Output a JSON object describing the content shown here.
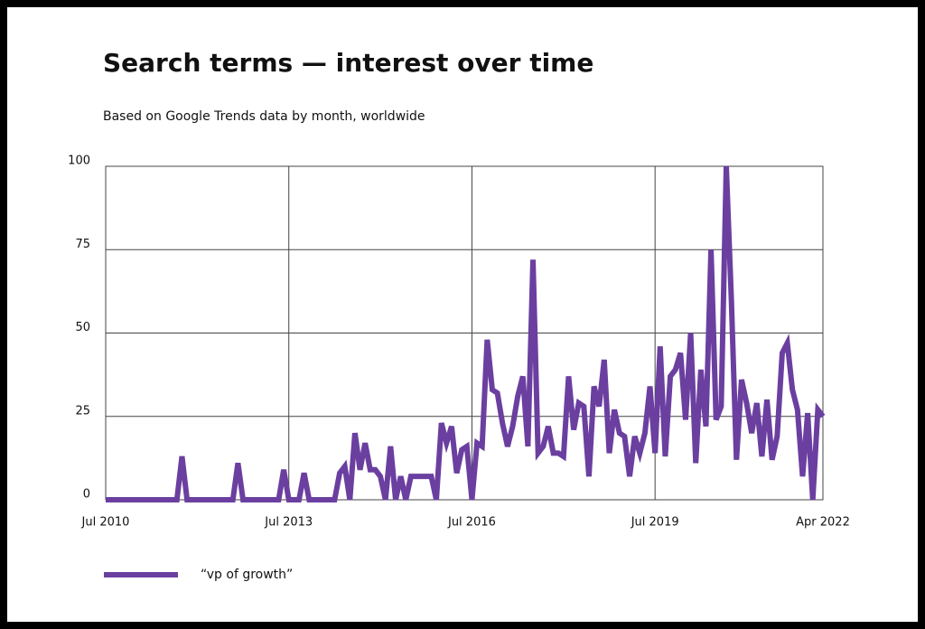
{
  "chart_data": {
    "type": "line",
    "title": "Search terms — interest over time",
    "subtitle": "Based on Google Trends data by month, worldwide",
    "x": [
      "2010-07",
      "2010-08",
      "2010-09",
      "2010-10",
      "2010-11",
      "2010-12",
      "2011-01",
      "2011-02",
      "2011-03",
      "2011-04",
      "2011-05",
      "2011-06",
      "2011-07",
      "2011-08",
      "2011-09",
      "2011-10",
      "2011-11",
      "2011-12",
      "2012-01",
      "2012-02",
      "2012-03",
      "2012-04",
      "2012-05",
      "2012-06",
      "2012-07",
      "2012-08",
      "2012-09",
      "2012-10",
      "2012-11",
      "2012-12",
      "2013-01",
      "2013-02",
      "2013-03",
      "2013-04",
      "2013-05",
      "2013-06",
      "2013-07",
      "2013-08",
      "2013-09",
      "2013-10",
      "2013-11",
      "2013-12",
      "2014-01",
      "2014-02",
      "2014-03",
      "2014-04",
      "2014-05",
      "2014-06",
      "2014-07",
      "2014-08",
      "2014-09",
      "2014-10",
      "2014-11",
      "2014-12",
      "2015-01",
      "2015-02",
      "2015-03",
      "2015-04",
      "2015-05",
      "2015-06",
      "2015-07",
      "2015-08",
      "2015-09",
      "2015-10",
      "2015-11",
      "2015-12",
      "2016-01",
      "2016-02",
      "2016-03",
      "2016-04",
      "2016-05",
      "2016-06",
      "2016-07",
      "2016-08",
      "2016-09",
      "2016-10",
      "2016-11",
      "2016-12",
      "2017-01",
      "2017-02",
      "2017-03",
      "2017-04",
      "2017-05",
      "2017-06",
      "2017-07",
      "2017-08",
      "2017-09",
      "2017-10",
      "2017-11",
      "2017-12",
      "2018-01",
      "2018-02",
      "2018-03",
      "2018-04",
      "2018-05",
      "2018-06",
      "2018-07",
      "2018-08",
      "2018-09",
      "2018-10",
      "2018-11",
      "2018-12",
      "2019-01",
      "2019-02",
      "2019-03",
      "2019-04",
      "2019-05",
      "2019-06",
      "2019-07",
      "2019-08",
      "2019-09",
      "2019-10",
      "2019-11",
      "2019-12",
      "2020-01",
      "2020-02",
      "2020-03",
      "2020-04",
      "2020-05",
      "2020-06",
      "2020-07",
      "2020-08",
      "2020-09",
      "2020-10",
      "2020-11",
      "2020-12",
      "2021-01",
      "2021-02",
      "2021-03",
      "2021-04",
      "2021-05",
      "2021-06",
      "2021-07",
      "2021-08",
      "2021-09",
      "2021-10",
      "2021-11",
      "2021-12",
      "2022-01",
      "2022-02",
      "2022-03",
      "2022-04"
    ],
    "series": [
      {
        "name": "“vp of growth”",
        "color": "#6b3fa0",
        "values": [
          0,
          0,
          0,
          0,
          0,
          0,
          0,
          0,
          0,
          0,
          0,
          0,
          0,
          0,
          0,
          13,
          0,
          0,
          0,
          0,
          0,
          0,
          0,
          0,
          0,
          0,
          11,
          0,
          0,
          0,
          0,
          0,
          0,
          0,
          0,
          9,
          0,
          0,
          0,
          8,
          0,
          0,
          0,
          0,
          0,
          0,
          8,
          10,
          0,
          20,
          9,
          17,
          9,
          9,
          7,
          0,
          16,
          0,
          7,
          0,
          7,
          7,
          7,
          7,
          7,
          0,
          23,
          17,
          22,
          8,
          15,
          16,
          0,
          17,
          16,
          48,
          33,
          32,
          23,
          16,
          22,
          31,
          37,
          16,
          72,
          14,
          16,
          22,
          14,
          14,
          13,
          37,
          21,
          29,
          28,
          7,
          34,
          28,
          42,
          14,
          27,
          20,
          19,
          7,
          19,
          14,
          20,
          34,
          14,
          46,
          13,
          37,
          39,
          44,
          24,
          50,
          11,
          39,
          22,
          75,
          24,
          28,
          100,
          60,
          12,
          36,
          29,
          20,
          29,
          13,
          30,
          12,
          19,
          44,
          47,
          33,
          27,
          7,
          26,
          0,
          27,
          25
        ]
      }
    ],
    "xticks": [
      {
        "value": "2010-07",
        "label": "Jul 2010"
      },
      {
        "value": "2013-07",
        "label": "Jul 2013"
      },
      {
        "value": "2016-07",
        "label": "Jul 2016"
      },
      {
        "value": "2019-07",
        "label": "Jul 2019"
      },
      {
        "value": "2022-04",
        "label": "Apr 2022"
      }
    ],
    "ylim": [
      0,
      100
    ],
    "yticks": [
      0,
      25,
      50,
      75,
      100
    ],
    "grid": true,
    "legend": "bottom-left"
  }
}
